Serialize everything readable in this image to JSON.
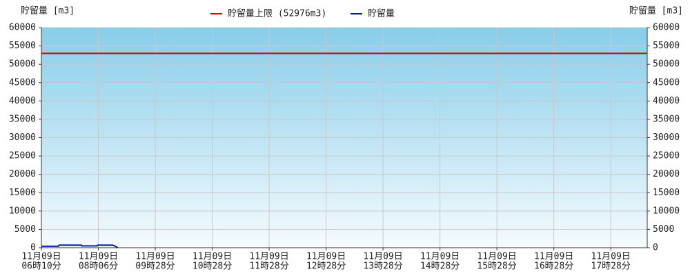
{
  "chart_data": {
    "type": "line",
    "y_label": "貯留量 [m3]",
    "y2_label": "貯留量 [m3]",
    "ylim": [
      0,
      60000
    ],
    "yticks": [
      0,
      5000,
      10000,
      15000,
      20000,
      25000,
      30000,
      35000,
      40000,
      45000,
      50000,
      55000,
      60000
    ],
    "y2lim": [
      0,
      60000
    ],
    "y2ticks": [
      0,
      5000,
      10000,
      15000,
      20000,
      25000,
      30000,
      35000,
      40000,
      45000,
      50000,
      55000,
      60000
    ],
    "xlim": [
      0,
      10.64
    ],
    "xticks": [
      {
        "value": 0,
        "label": [
          "11月09日",
          "06時10分"
        ]
      },
      {
        "value": 1,
        "label": [
          "11月09日",
          "08時06分"
        ]
      },
      {
        "value": 2,
        "label": [
          "11月09日",
          "09時28分"
        ]
      },
      {
        "value": 3,
        "label": [
          "11月09日",
          "10時28分"
        ]
      },
      {
        "value": 4,
        "label": [
          "11月09日",
          "11時28分"
        ]
      },
      {
        "value": 5,
        "label": [
          "11月09日",
          "12時28分"
        ]
      },
      {
        "value": 6,
        "label": [
          "11月09日",
          "13時28分"
        ]
      },
      {
        "value": 7,
        "label": [
          "11月09日",
          "14時28分"
        ]
      },
      {
        "value": 8,
        "label": [
          "11月09日",
          "15時28分"
        ]
      },
      {
        "value": 9,
        "label": [
          "11月09日",
          "16時28分"
        ]
      },
      {
        "value": 10,
        "label": [
          "11月09日",
          "17時28分"
        ]
      }
    ],
    "grid": true,
    "limit": {
      "name": "貯留量上限 (52976m3)",
      "color": "#e00000",
      "value": 52976
    },
    "series": [
      {
        "name": "貯留量",
        "color": "#0020a0",
        "x": [
          0,
          0.3,
          0.31,
          0.7,
          0.71,
          0.98,
          0.99,
          1.25,
          1.3,
          1.34
        ],
        "values": [
          400,
          400,
          700,
          700,
          500,
          500,
          700,
          700,
          400,
          0
        ]
      }
    ]
  }
}
